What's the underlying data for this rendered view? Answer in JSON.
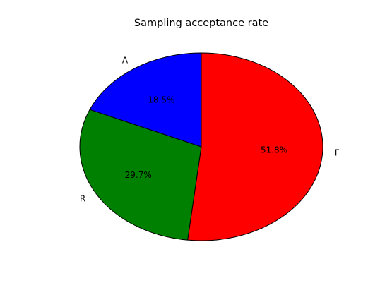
{
  "chart_data": {
    "type": "pie",
    "title": "Sampling acceptance rate",
    "slices": [
      {
        "label": "F",
        "value": 51.8,
        "pct_label": "51.8%",
        "color": "#ff0000"
      },
      {
        "label": "R",
        "value": 29.7,
        "pct_label": "29.7%",
        "color": "#008000"
      },
      {
        "label": "A",
        "value": 18.5,
        "pct_label": "18.5%",
        "color": "#0000ff"
      }
    ],
    "start_angle_deg": 90,
    "direction": "clockwise",
    "legend": "none"
  }
}
